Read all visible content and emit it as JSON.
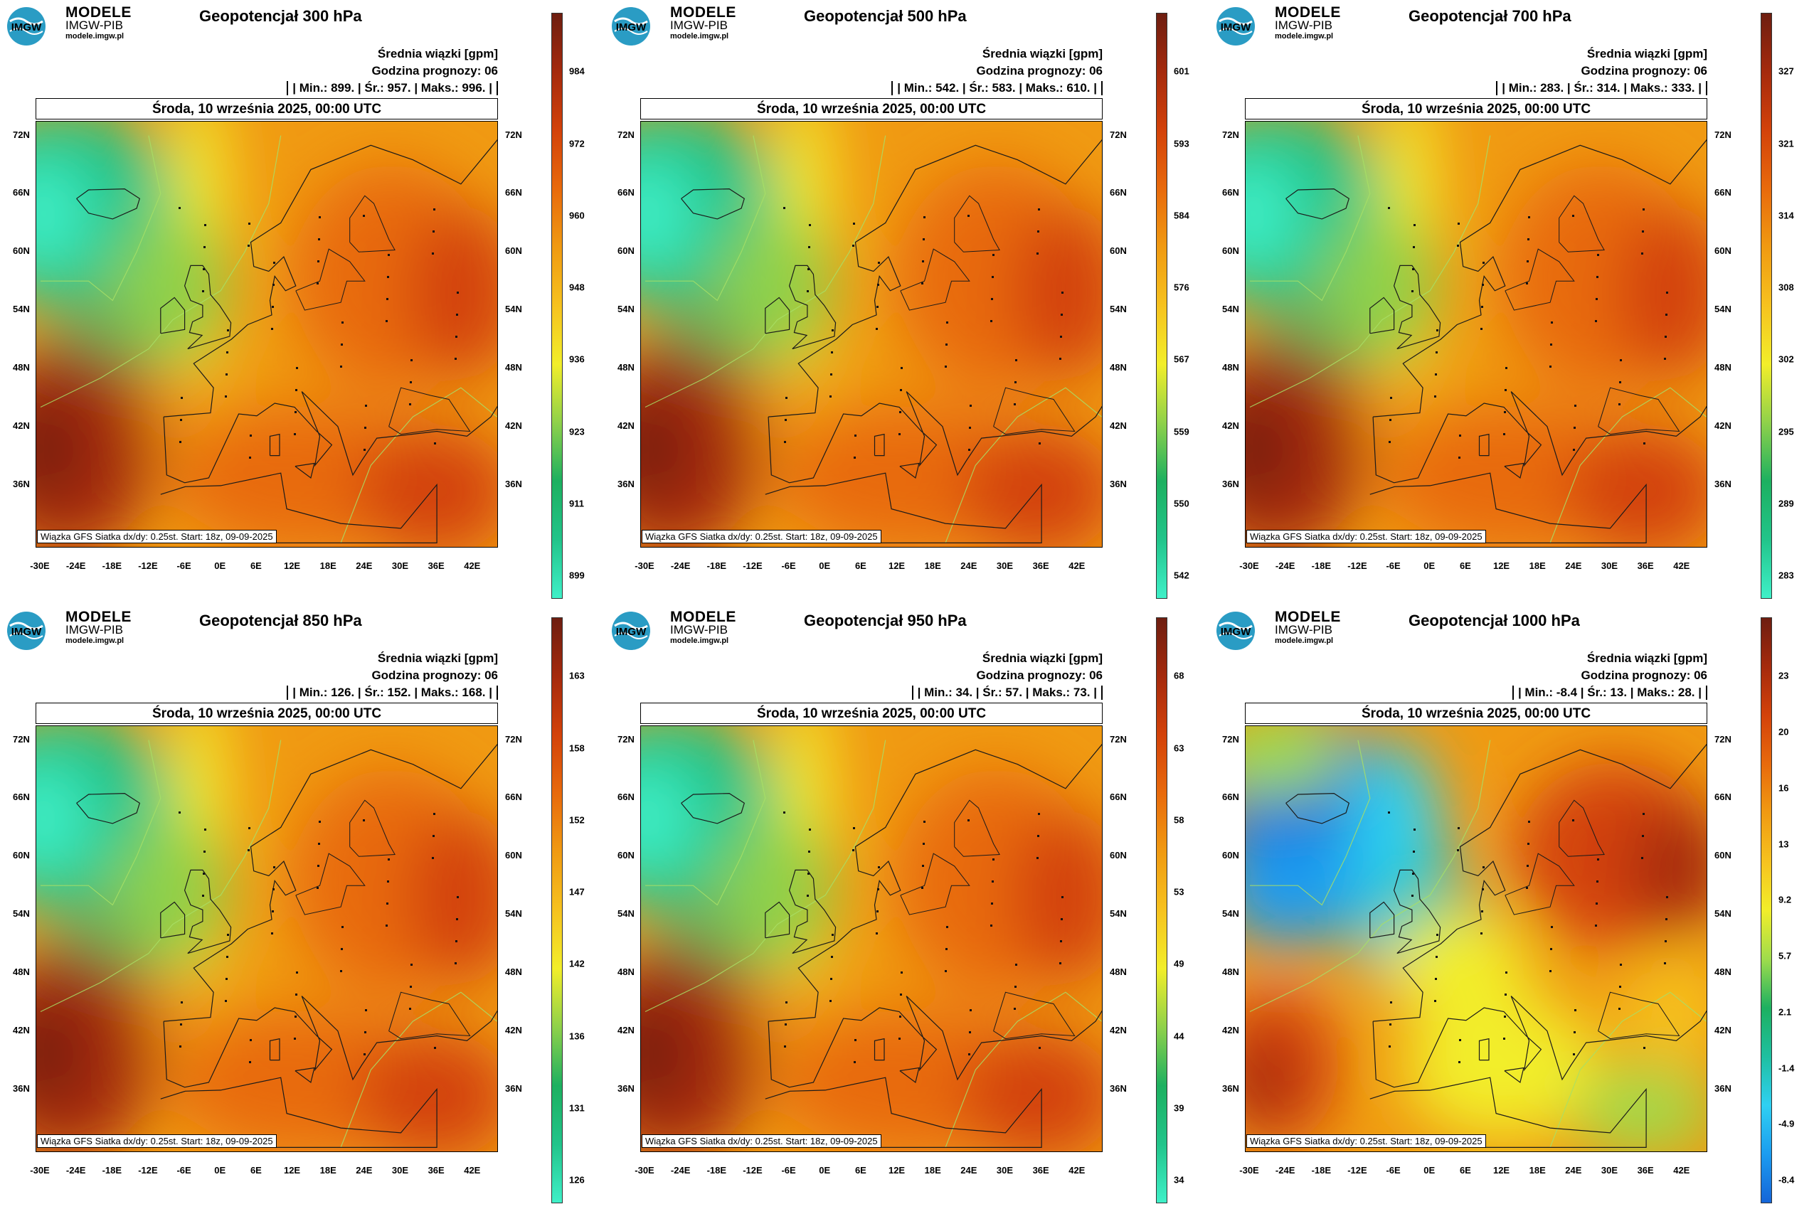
{
  "brand": {
    "line1": "MODELE",
    "line2": "IMGW-PIB",
    "line3": "modele.imgw.pl",
    "logo_text": "IMGW"
  },
  "header": {
    "units": "Średnia wiązki [gpm]",
    "forecast_hour": "Godzina prognozy: 06",
    "date": "Środa, 10 września 2025, 00:00 UTC"
  },
  "footer": "Wiązka GFS Siatka dx/dy: 0.25st. Start: 18z, 09-09-2025",
  "lat_labels": [
    "72N",
    "66N",
    "60N",
    "54N",
    "48N",
    "42N",
    "36N"
  ],
  "lon_labels": [
    "-30E",
    "-24E",
    "-18E",
    "-12E",
    "-6E",
    "0E",
    "6E",
    "12E",
    "18E",
    "24E",
    "30E",
    "36E",
    "42E"
  ],
  "colors": {
    "scale": [
      "#3ff0c8",
      "#22c48a",
      "#1db060",
      "#8fd14a",
      "#f2ee2a",
      "#f6c21f",
      "#f09a12",
      "#e86a0c",
      "#d3420a",
      "#a52a0d",
      "#6e1e10"
    ],
    "scale_1000": [
      "#1565d8",
      "#1b9cf0",
      "#2fd0f2",
      "#1fbfa0",
      "#1db060",
      "#9fdc4c",
      "#f2ee2a",
      "#f6c21f",
      "#f09a12",
      "#e86a0c",
      "#d3420a",
      "#a52a0d",
      "#6e1e10"
    ]
  },
  "panels": [
    {
      "title": "Geopotencjał 300 hPa",
      "stats": "| Min.: 899. | Śr.: 957. | Maks.: 996. |",
      "ticks": [
        "984",
        "972",
        "960",
        "948",
        "936",
        "923",
        "911",
        "899"
      ],
      "diverging": false
    },
    {
      "title": "Geopotencjał 500 hPa",
      "stats": "| Min.: 542. | Śr.: 583. | Maks.: 610. |",
      "ticks": [
        "601",
        "593",
        "584",
        "576",
        "567",
        "559",
        "550",
        "542"
      ],
      "diverging": false
    },
    {
      "title": "Geopotencjał 700 hPa",
      "stats": "| Min.: 283. | Śr.: 314. | Maks.: 333. |",
      "ticks": [
        "327",
        "321",
        "314",
        "308",
        "302",
        "295",
        "289",
        "283"
      ],
      "diverging": false
    },
    {
      "title": "Geopotencjał 850 hPa",
      "stats": "| Min.: 126. | Śr.: 152. | Maks.: 168. |",
      "ticks": [
        "163",
        "158",
        "152",
        "147",
        "142",
        "136",
        "131",
        "126"
      ],
      "diverging": false
    },
    {
      "title": "Geopotencjał 950 hPa",
      "stats": "| Min.: 34. | Śr.: 57. | Maks.: 73. |",
      "ticks": [
        "68",
        "63",
        "58",
        "53",
        "49",
        "44",
        "39",
        "34"
      ],
      "diverging": false
    },
    {
      "title": "Geopotencjał 1000 hPa",
      "stats": "| Min.: -8.4 | Śr.: 13. | Maks.: 28. |",
      "ticks": [
        "23",
        "20",
        "16",
        "13",
        "9.2",
        "5.7",
        "2.1",
        "-1.4",
        "-4.9",
        "-8.4"
      ],
      "diverging": true
    }
  ]
}
